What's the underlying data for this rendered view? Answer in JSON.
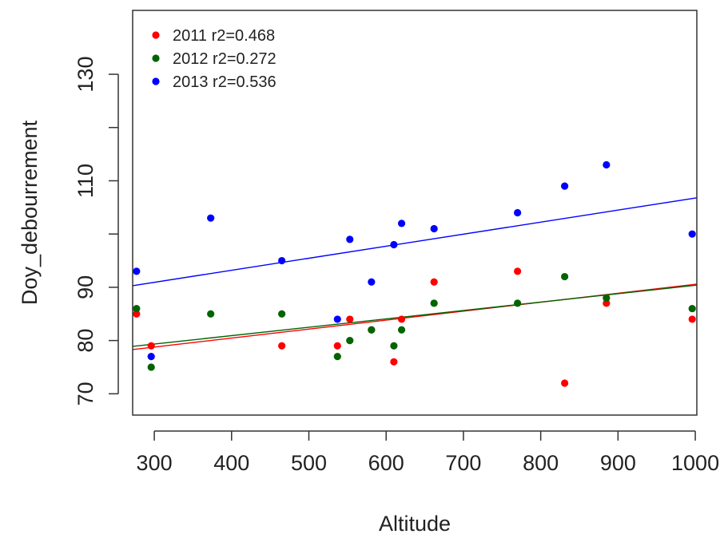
{
  "chart_data": {
    "type": "scatter",
    "xlabel": "Altitude",
    "ylabel": "Doy_debourrement",
    "xlim": [
      272,
      1002
    ],
    "ylim": [
      66,
      142
    ],
    "xticks": [
      300,
      400,
      500,
      600,
      700,
      800,
      900,
      1000
    ],
    "yticks": [
      70,
      80,
      90,
      110,
      130
    ],
    "grid": false,
    "legend_position": "top-left",
    "series": [
      {
        "name": "2011 r2=0.468",
        "color": "#ff0000",
        "points": [
          [
            277,
            85
          ],
          [
            296,
            79
          ],
          [
            465,
            79
          ],
          [
            537,
            79
          ],
          [
            553,
            84
          ],
          [
            581,
            82
          ],
          [
            610,
            76
          ],
          [
            620,
            84
          ],
          [
            662,
            91
          ],
          [
            770,
            93
          ],
          [
            831,
            72
          ],
          [
            885,
            87
          ],
          [
            996,
            84
          ]
        ],
        "fit": [
          [
            272,
            78.3
          ],
          [
            1002,
            90.6
          ]
        ]
      },
      {
        "name": "2012 r2=0.272",
        "color": "#006400",
        "points": [
          [
            277,
            86
          ],
          [
            296,
            75
          ],
          [
            373,
            85
          ],
          [
            465,
            85
          ],
          [
            537,
            77
          ],
          [
            553,
            80
          ],
          [
            581,
            82
          ],
          [
            610,
            79
          ],
          [
            620,
            82
          ],
          [
            662,
            87
          ],
          [
            770,
            87
          ],
          [
            831,
            92
          ],
          [
            885,
            88
          ],
          [
            996,
            86
          ]
        ],
        "fit": [
          [
            272,
            78.9
          ],
          [
            1002,
            90.4
          ]
        ]
      },
      {
        "name": "2013 r2=0.536",
        "color": "#0000ff",
        "points": [
          [
            277,
            93
          ],
          [
            296,
            77
          ],
          [
            373,
            103
          ],
          [
            465,
            95
          ],
          [
            537,
            84
          ],
          [
            553,
            99
          ],
          [
            581,
            91
          ],
          [
            610,
            98
          ],
          [
            620,
            102
          ],
          [
            662,
            101
          ],
          [
            770,
            104
          ],
          [
            831,
            109
          ],
          [
            885,
            113
          ],
          [
            996,
            100
          ]
        ],
        "fit": [
          [
            272,
            90.3
          ],
          [
            1002,
            106.8
          ]
        ]
      }
    ]
  }
}
